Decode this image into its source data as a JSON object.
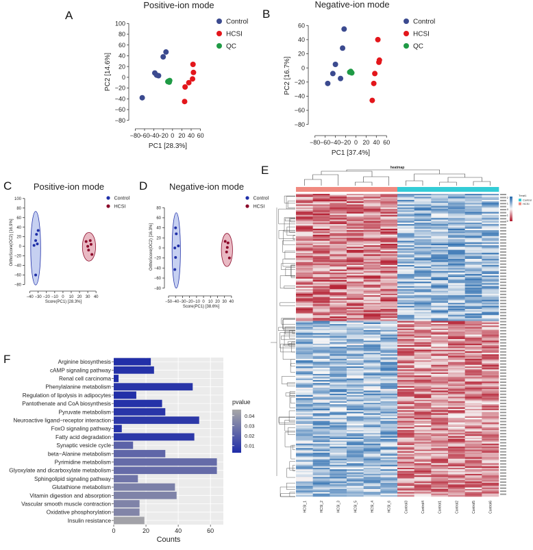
{
  "panel_labels": {
    "a": "A",
    "b": "B",
    "c": "C",
    "d": "D",
    "e": "E",
    "f": "F"
  },
  "chart_data": [
    {
      "id": "A",
      "type": "scatter",
      "title": "Positive-ion mode",
      "xlabel": "PC1 [28.3%]",
      "ylabel": "PC2 [14.6%]",
      "xlim": [
        -85,
        65
      ],
      "ylim": [
        -88,
        108
      ],
      "xticks": [
        -80,
        -60,
        -40,
        -20,
        0,
        20,
        40,
        60
      ],
      "yticks": [
        -80,
        -60,
        -40,
        -20,
        0,
        20,
        40,
        60,
        80,
        100
      ],
      "legend": [
        "Control",
        "HCSI",
        "QC"
      ],
      "series": [
        {
          "name": "Control",
          "color": "#3b4a8f",
          "points": [
            [
              -65,
              -38
            ],
            [
              -38,
              8
            ],
            [
              -34,
              4
            ],
            [
              -30,
              3
            ],
            [
              -20,
              38
            ],
            [
              -14,
              47
            ]
          ]
        },
        {
          "name": "HCSI",
          "color": "#e3161b",
          "points": [
            [
              26,
              -45
            ],
            [
              27,
              -18
            ],
            [
              35,
              -10
            ],
            [
              43,
              -3
            ],
            [
              45,
              9
            ],
            [
              44,
              24
            ]
          ]
        },
        {
          "name": "QC",
          "color": "#1f9a45",
          "points": [
            [
              -10,
              -8
            ],
            [
              -8,
              -7
            ],
            [
              -7,
              -9
            ],
            [
              -6,
              -6
            ]
          ]
        }
      ]
    },
    {
      "id": "B",
      "type": "scatter",
      "title": "Negative-ion mode",
      "xlabel": "PC1 [37.4%]",
      "ylabel": "PC2 [16.7%]",
      "xlim": [
        -85,
        65
      ],
      "ylim": [
        -90,
        68
      ],
      "xticks": [
        -80,
        -60,
        -40,
        -20,
        0,
        20,
        40,
        60
      ],
      "yticks": [
        -80,
        -60,
        -40,
        -20,
        0,
        20,
        40,
        60
      ],
      "legend": [
        "Control",
        "HCSI",
        "QC"
      ],
      "series": [
        {
          "name": "Control",
          "color": "#3b4a8f",
          "points": [
            [
              -55,
              -22
            ],
            [
              -45,
              -8
            ],
            [
              -40,
              5
            ],
            [
              -30,
              -15
            ],
            [
              -26,
              28
            ],
            [
              -23,
              55
            ]
          ]
        },
        {
          "name": "HCSI",
          "color": "#e3161b",
          "points": [
            [
              32,
              -46
            ],
            [
              35,
              -22
            ],
            [
              37,
              -8
            ],
            [
              45,
              8
            ],
            [
              46,
              11
            ],
            [
              43,
              40
            ]
          ]
        },
        {
          "name": "QC",
          "color": "#1f9a45",
          "points": [
            [
              -12,
              -6
            ],
            [
              -10,
              -5
            ],
            [
              -8,
              -7
            ]
          ]
        }
      ]
    },
    {
      "id": "C",
      "type": "scatter",
      "title": "Positive-ion mode",
      "xlabel": "Score(PC1) [28.3%]",
      "ylabel": "OrthoScore(OC2) [16.9%]",
      "xlim": [
        -43,
        44
      ],
      "ylim": [
        -88,
        104
      ],
      "xticks": [
        -40,
        -30,
        -20,
        -10,
        0,
        10,
        20,
        30,
        40
      ],
      "yticks": [
        -80,
        -60,
        -40,
        -20,
        0,
        20,
        40,
        60,
        80,
        100
      ],
      "legend": [
        "Control",
        "HCSI"
      ],
      "series": [
        {
          "name": "Control",
          "color": "#1f2fa8",
          "points": [
            [
              -33,
              -60
            ],
            [
              -35,
              2
            ],
            [
              -33,
              12
            ],
            [
              -31,
              5
            ],
            [
              -32,
              25
            ],
            [
              -30,
              33
            ]
          ]
        },
        {
          "name": "HCSI",
          "color": "#8b0a2a",
          "points": [
            [
              28,
              10
            ],
            [
              30,
              0
            ],
            [
              31,
              -8
            ],
            [
              33,
              12
            ],
            [
              34,
              4
            ],
            [
              35,
              -17
            ]
          ]
        }
      ],
      "ellipses": [
        {
          "name": "Control",
          "center": [
            -33,
            -4
          ],
          "radii": [
            6,
            77
          ],
          "fill": "#b8c4ee",
          "stroke": "#1f2fa8"
        },
        {
          "name": "HCSI",
          "center": [
            31.5,
            -1
          ],
          "radii": [
            8,
            30
          ],
          "fill": "#e3a8b4",
          "stroke": "#8b0a2a"
        }
      ]
    },
    {
      "id": "D",
      "type": "scatter",
      "title": "Negative-ion mode",
      "xlabel": "Score(PC1) [38.6%]",
      "ylabel": "OrthoScore(OC2) [16.3%]",
      "xlim": [
        -52,
        45
      ],
      "ylim": [
        -90,
        94
      ],
      "xticks": [
        -50,
        -40,
        -30,
        -20,
        -10,
        0,
        10,
        20,
        30,
        40
      ],
      "yticks": [
        -80,
        -60,
        -40,
        -20,
        0,
        20,
        40,
        60,
        80
      ],
      "legend": [
        "Control",
        "HCSI"
      ],
      "series": [
        {
          "name": "Control",
          "color": "#1f2fa8",
          "points": [
            [
              -41,
              -43
            ],
            [
              -40,
              -19
            ],
            [
              -41,
              0
            ],
            [
              -36,
              4
            ],
            [
              -39,
              28
            ],
            [
              -40,
              40
            ]
          ]
        },
        {
          "name": "HCSI",
          "color": "#8b0a2a",
          "points": [
            [
              31,
              13
            ],
            [
              33,
              -8
            ],
            [
              34,
              1
            ],
            [
              35,
              10
            ],
            [
              37,
              -20
            ]
          ]
        }
      ],
      "ellipses": [
        {
          "name": "Control",
          "center": [
            -39,
            -5
          ],
          "radii": [
            6,
            75
          ],
          "fill": "#b8c4ee",
          "stroke": "#1f2fa8"
        },
        {
          "name": "HCSI",
          "center": [
            33.5,
            -4
          ],
          "radii": [
            8,
            33
          ],
          "fill": "#e3a8b4",
          "stroke": "#8b0a2a"
        }
      ]
    },
    {
      "id": "E",
      "type": "heatmap",
      "title": "heatmap",
      "columns": [
        "HCSI_1",
        "HCSI_2",
        "HCSI_3",
        "HCSI_5",
        "HCSI_4",
        "HCSI_6",
        "Control3",
        "Control4",
        "Control1",
        "Control2",
        "Control5",
        "Control6"
      ],
      "groups": [
        "HCSI",
        "HCSI",
        "HCSI",
        "HCSI",
        "HCSI",
        "HCSI",
        "Control",
        "Control",
        "Control",
        "Control",
        "Control",
        "Control"
      ],
      "group_colors": {
        "HCSI": "#f08a80",
        "Control": "#33ccd6"
      },
      "annotation_legend": {
        "title": "Treat1",
        "items": [
          "Control",
          "HCSI"
        ]
      },
      "color_scale": {
        "ticks": [
          2,
          1,
          0,
          -1,
          -2
        ],
        "high": "#2166ac",
        "mid": "#f7f7f7",
        "low": "#b2182b"
      },
      "n_rows": 200
    },
    {
      "id": "F",
      "type": "bar",
      "orientation": "horizontal",
      "xlabel": "Counts",
      "xlim": [
        0,
        68
      ],
      "xticks": [
        0,
        20,
        40,
        60
      ],
      "categories": [
        "Arginine biosynthesis",
        "cAMP signaling pathway",
        "Renal cell carcinoma",
        "Phenylalanine metabolism",
        "Regulation of lipolysis in adipocytes",
        "Pantothenate and CoA biosynthesis",
        "Pyruvate metabolism",
        "Neuroactive ligand−receptor interaction",
        "FoxO signaling pathway",
        "Fatty acid degradation",
        "Synaptic vesicle cycle",
        "beta−Alanine metabolism",
        "Pyrimidine metabolism",
        "Glyoxylate and dicarboxylate metabolism",
        "Sphingolipid signaling pathway",
        "Glutathione metabolism",
        "Vitamin digestion and absorption",
        "Vascular smooth muscle contraction",
        "Oxidative phosphorylation",
        "Insulin resistance"
      ],
      "values": [
        23,
        25,
        3,
        49,
        14,
        30,
        32,
        53,
        5,
        50,
        12,
        32,
        64,
        64,
        15,
        38,
        39,
        16,
        16,
        19
      ],
      "pvalues": [
        0.004,
        0.005,
        0.003,
        0.006,
        0.004,
        0.005,
        0.006,
        0.007,
        0.005,
        0.007,
        0.022,
        0.023,
        0.025,
        0.025,
        0.028,
        0.032,
        0.033,
        0.033,
        0.034,
        0.044
      ],
      "colorbar": {
        "title": "pvalue",
        "ticks": [
          0.01,
          0.02,
          0.03,
          0.04
        ],
        "range": [
          0.003,
          0.046
        ],
        "low": "#1f2ca8",
        "high": "#a8a8a8"
      }
    }
  ]
}
